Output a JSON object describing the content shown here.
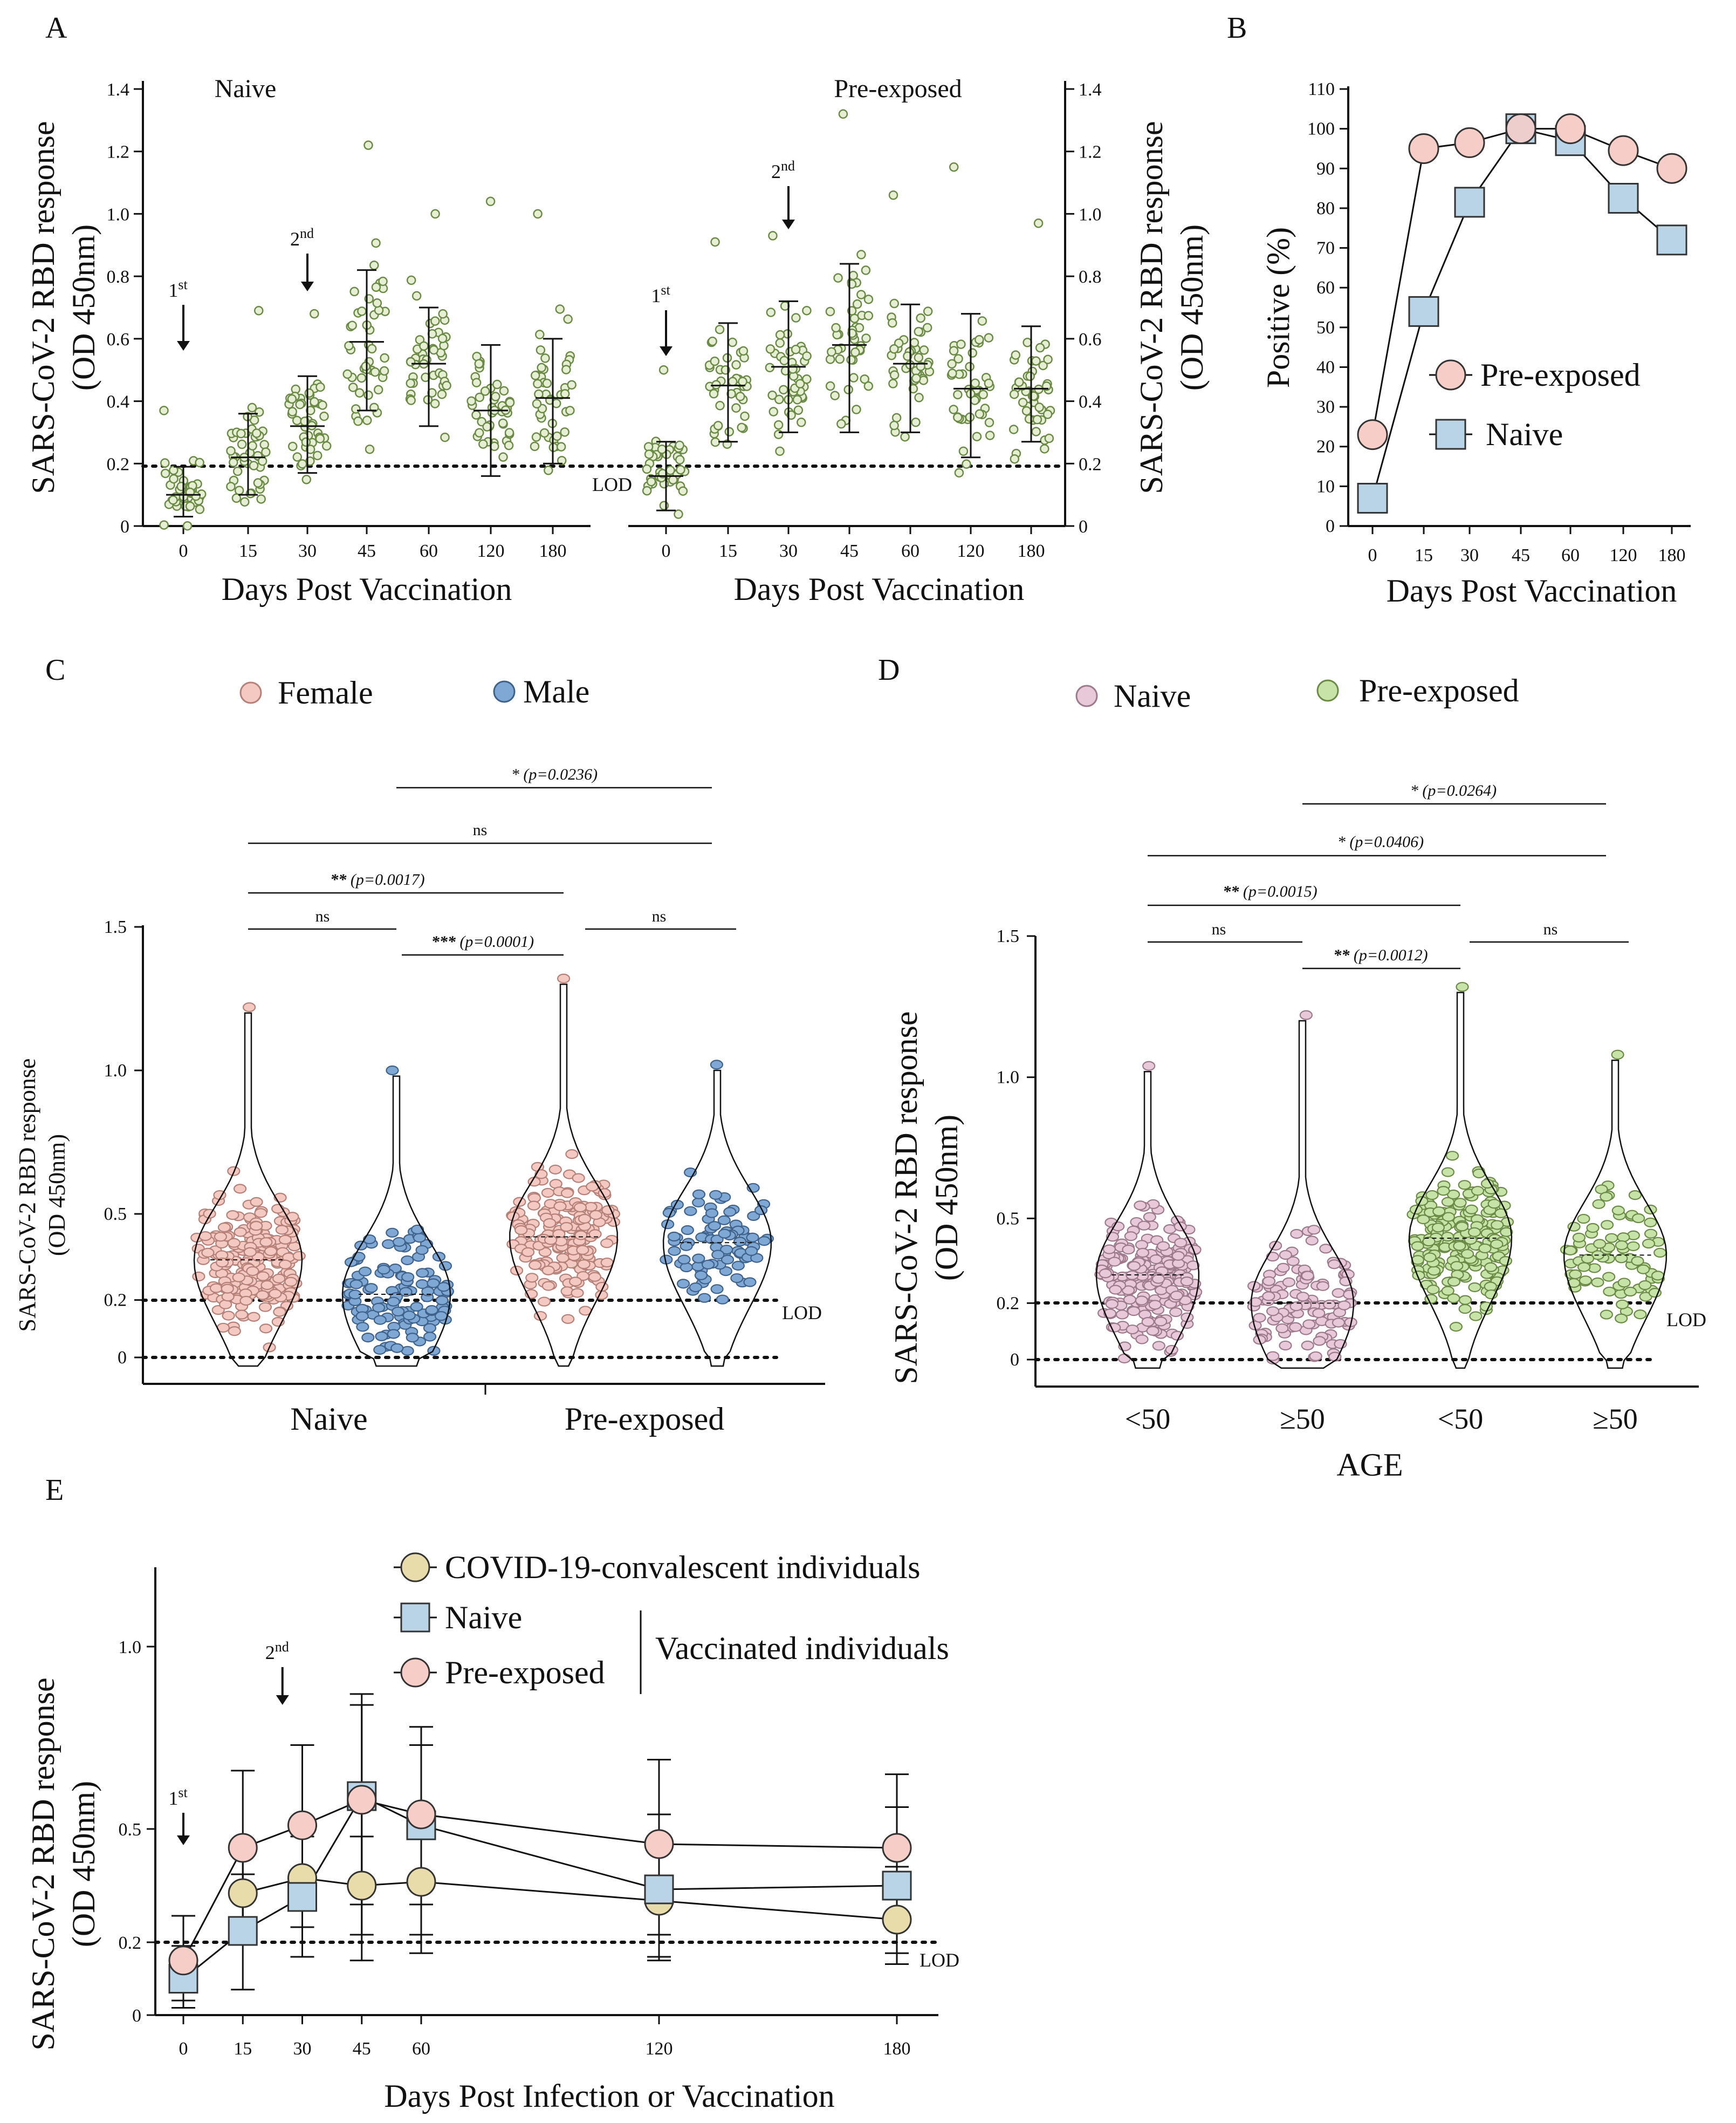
{
  "colors": {
    "green_dot": "#e6efd4",
    "green_edge": "#6a8a45",
    "female": "#f4c9c1",
    "female_edge": "#b58077",
    "male": "#7fa8d4",
    "male_edge": "#3f628b",
    "naive_pink": "#e8c9d9",
    "naive_pink_edge": "#9d7a8b",
    "preexp_green": "#c8e3a8",
    "preexp_green_edge": "#6a8a45",
    "pre_circle": "#f7cdc8",
    "pre_circle_edge": "#333333",
    "naive_square": "#b8d4e6",
    "naive_square_edge": "#333333",
    "conv_circle": "#e8dcaa",
    "conv_circle_edge": "#333333"
  },
  "panel_labels": [
    "A",
    "B",
    "C",
    "D",
    "E"
  ],
  "chart_data": [
    {
      "panel": "A",
      "type": "scatter",
      "y_axis_label_line1": "SARS-CoV-2 RBD response",
      "y_axis_label_line2": "(OD 450nm)",
      "ylim": [
        0,
        1.4
      ],
      "yticks": [
        "0",
        "0.2",
        "0.4",
        "0.6",
        "0.8",
        "1.0",
        "1.2",
        "1.4"
      ],
      "lod_label": "LOD",
      "lod_value": 0.2,
      "groups": [
        {
          "title": "Naive",
          "xlabel": "Days Post Vaccination",
          "categories": [
            "0",
            "15",
            "30",
            "45",
            "60",
            "120",
            "180"
          ],
          "means": [
            0.1,
            0.22,
            0.32,
            0.59,
            0.52,
            0.37,
            0.41
          ],
          "sd_low": [
            0.03,
            0.1,
            0.17,
            0.37,
            0.32,
            0.16,
            0.2
          ],
          "sd_high": [
            0.19,
            0.36,
            0.48,
            0.82,
            0.7,
            0.58,
            0.6
          ],
          "max_values": [
            0.37,
            0.69,
            0.68,
            1.22,
            1.0,
            1.04,
            1.0
          ],
          "arrows": [
            {
              "label": "1",
              "sup": "st",
              "category": "0"
            },
            {
              "label": "2",
              "sup": "nd",
              "category": "30"
            }
          ]
        },
        {
          "title": "Pre-exposed",
          "xlabel": "Days Post Vaccination",
          "categories": [
            "0",
            "15",
            "30",
            "45",
            "60",
            "120",
            "180"
          ],
          "means": [
            0.16,
            0.45,
            0.51,
            0.58,
            0.52,
            0.44,
            0.44
          ],
          "sd_low": [
            0.05,
            0.27,
            0.3,
            0.3,
            0.3,
            0.22,
            0.27
          ],
          "sd_high": [
            0.27,
            0.65,
            0.72,
            0.84,
            0.71,
            0.68,
            0.64
          ],
          "max_values": [
            0.5,
            0.91,
            0.93,
            1.32,
            1.06,
            1.15,
            0.97
          ],
          "arrows": [
            {
              "label": "1",
              "sup": "st",
              "category": "0"
            },
            {
              "label": "2",
              "sup": "nd",
              "category": "30"
            }
          ]
        }
      ]
    },
    {
      "panel": "B",
      "type": "line",
      "ylabel": "Positive (%)",
      "xlabel": "Days Post Vaccination",
      "ylim": [
        0,
        110
      ],
      "yticks": [
        "0",
        "10",
        "20",
        "30",
        "40",
        "50",
        "60",
        "70",
        "80",
        "90",
        "100",
        "110"
      ],
      "categories": [
        "0",
        "15",
        "30",
        "45",
        "60",
        "120",
        "180"
      ],
      "series": [
        {
          "name": "Pre-exposed",
          "marker": "circle",
          "values": [
            23,
            95,
            96.5,
            100,
            100,
            94.5,
            90
          ]
        },
        {
          "name": "Naive",
          "marker": "square",
          "values": [
            7,
            54,
            81.5,
            100,
            97,
            82.5,
            72
          ]
        }
      ]
    },
    {
      "panel": "C",
      "type": "violin",
      "ylabel_line1": "SARS-CoV-2 RBD response",
      "ylabel_line2": "(OD 450nm)",
      "yticks": [
        "0",
        "0.2",
        "0.5",
        "1.0",
        "1.5"
      ],
      "lod_label": "LOD",
      "legend": [
        "Female",
        "Male"
      ],
      "group_labels": [
        "Naive",
        "Pre-exposed"
      ],
      "violins": [
        {
          "group": "Naive",
          "sex": "Female",
          "median": 0.34,
          "max": 1.22
        },
        {
          "group": "Naive",
          "sex": "Male",
          "median": 0.22,
          "max": 1.0
        },
        {
          "group": "Pre-exposed",
          "sex": "Female",
          "median": 0.42,
          "max": 1.32
        },
        {
          "group": "Pre-exposed",
          "sex": "Male",
          "median": 0.4,
          "max": 1.02
        }
      ],
      "comparisons": [
        {
          "stars": "*",
          "p": "(p=0.0236)"
        },
        {
          "stars": "ns",
          "p": ""
        },
        {
          "stars": "**",
          "p": "(p=0.0017)"
        },
        {
          "stars": "ns",
          "p": ""
        },
        {
          "stars": "***",
          "p": "(p=0.0001)"
        },
        {
          "stars": "ns",
          "p": ""
        }
      ]
    },
    {
      "panel": "D",
      "type": "violin",
      "ylabel_line1": "SARS-CoV-2 RBD response",
      "ylabel_line2": "(OD 450nm)",
      "yticks": [
        "0",
        "0.2",
        "0.5",
        "1.0",
        "1.5"
      ],
      "lod_label": "LOD",
      "legend": [
        "Naive",
        "Pre-exposed"
      ],
      "xlabel": "AGE",
      "categories": [
        "<50",
        "≥50",
        "<50",
        "≥50"
      ],
      "violins": [
        {
          "group": "Naive",
          "age": "<50",
          "median": 0.3,
          "max": 1.04
        },
        {
          "group": "Naive",
          "age": "≥50",
          "median": 0.2,
          "max": 1.22
        },
        {
          "group": "Pre-exposed",
          "age": "<50",
          "median": 0.43,
          "max": 1.32
        },
        {
          "group": "Pre-exposed",
          "age": "≥50",
          "median": 0.37,
          "max": 1.08
        }
      ],
      "comparisons": [
        {
          "stars": "*",
          "p": "(p=0.0264)"
        },
        {
          "stars": "*",
          "p": "(p=0.0406)"
        },
        {
          "stars": "**",
          "p": "(p=0.0015)"
        },
        {
          "stars": "ns",
          "p": ""
        },
        {
          "stars": "**",
          "p": "(p=0.0012)"
        },
        {
          "stars": "ns",
          "p": ""
        }
      ]
    },
    {
      "panel": "E",
      "type": "line",
      "ylabel_line1": "SARS-CoV-2 RBD response",
      "ylabel_line2": "(OD 450nm)",
      "xlabel": "Days Post Infection or Vaccination",
      "yticks": [
        "0",
        "0.2",
        "0.5",
        "1.0"
      ],
      "x": [
        0,
        15,
        30,
        45,
        60,
        120,
        180
      ],
      "xticks": [
        "0",
        "15",
        "30",
        "45",
        "60",
        "120",
        "180"
      ],
      "lod_label": "LOD",
      "bracket_label": "Vaccinated individuals",
      "arrows": [
        {
          "label": "1",
          "sup": "st",
          "x": 0
        },
        {
          "label": "2",
          "sup": "nd",
          "x": 25
        }
      ],
      "series": [
        {
          "name": "COVID-19-convalescent individuals",
          "marker": "circle",
          "values": [
            null,
            0.33,
            0.37,
            0.35,
            0.36,
            0.31,
            0.26
          ],
          "err_low": [
            null,
            0.22,
            0.24,
            0.22,
            0.22,
            0.16,
            0.17
          ],
          "err_high": [
            null,
            0.45,
            0.5,
            0.48,
            0.52,
            0.46,
            0.4
          ]
        },
        {
          "name": "Naive",
          "marker": "square",
          "values": [
            0.1,
            0.23,
            0.32,
            0.59,
            0.51,
            0.34,
            0.35
          ],
          "err_low": [
            0.02,
            0.07,
            0.16,
            0.15,
            0.17,
            0.15,
            0.14
          ],
          "err_high": [
            0.19,
            0.38,
            0.48,
            0.87,
            0.78,
            0.54,
            0.56
          ]
        },
        {
          "name": "Pre-exposed",
          "marker": "circle",
          "values": [
            0.15,
            0.45,
            0.51,
            0.58,
            0.54,
            0.46,
            0.45
          ],
          "err_low": [
            0.04,
            0.22,
            0.3,
            0.3,
            0.3,
            0.22,
            0.27
          ],
          "err_high": [
            0.27,
            0.66,
            0.73,
            0.84,
            0.73,
            0.69,
            0.65
          ]
        }
      ]
    }
  ]
}
